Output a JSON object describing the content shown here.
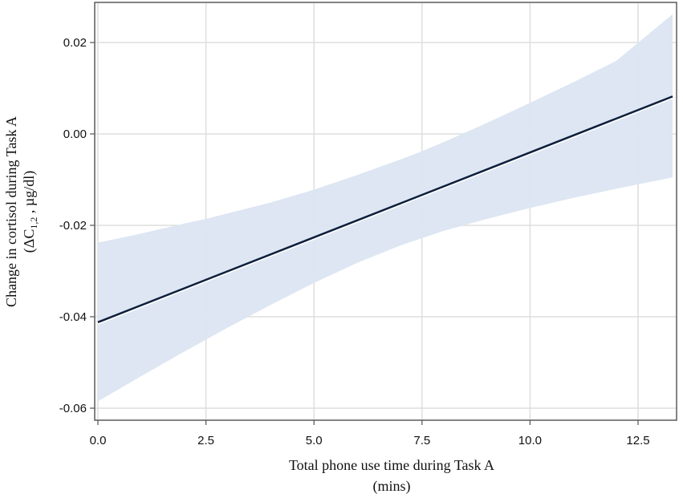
{
  "chart_data": {
    "type": "line",
    "title": "",
    "xlabel": "Total phone use time during Task A",
    "xlabel_line2": "(mins)",
    "ylabel": "Change in cortisol during Task A",
    "ylabel_line2_prefix": "(ΔC",
    "ylabel_line2_sub": "1,2",
    "ylabel_line2_suffix": " , µg/dl)",
    "xlim": [
      -0.1,
      13.3
    ],
    "ylim": [
      -0.0625,
      0.0285
    ],
    "x_ticks": [
      0.0,
      2.5,
      5.0,
      7.5,
      10.0,
      12.5
    ],
    "x_tick_labels": [
      "0.0",
      "2.5",
      "5.0",
      "7.5",
      "10.0",
      "12.5"
    ],
    "y_ticks": [
      0.02,
      0.0,
      -0.02,
      -0.04,
      -0.06
    ],
    "y_tick_labels": [
      "0.02",
      "0.00",
      "-0.02",
      "-0.04",
      "-0.06"
    ],
    "grid": true,
    "legend": null,
    "series": [
      {
        "name": "Fitted regression line",
        "color": "#0d1f3c",
        "x": [
          0.0,
          13.3
        ],
        "y": [
          -0.0412,
          0.0082
        ]
      },
      {
        "name": "95% confidence band (upper)",
        "color": "#dbe5f1",
        "x": [
          0.0,
          1.0,
          2.0,
          2.5,
          3.0,
          4.0,
          5.0,
          6.0,
          7.0,
          7.5,
          8.0,
          9.0,
          10.0,
          11.0,
          12.0,
          13.3
        ],
        "y": [
          -0.0238,
          -0.0218,
          -0.0196,
          -0.0186,
          -0.0174,
          -0.015,
          -0.0122,
          -0.009,
          -0.0056,
          -0.0038,
          -0.0018,
          0.0024,
          0.0068,
          0.0113,
          0.016,
          0.0262
        ]
      },
      {
        "name": "95% confidence band (lower)",
        "color": "#dbe5f1",
        "x": [
          0.0,
          1.0,
          2.0,
          2.5,
          3.0,
          4.0,
          5.0,
          6.0,
          7.0,
          7.5,
          8.0,
          9.0,
          10.0,
          11.0,
          12.0,
          13.3
        ],
        "y": [
          -0.0585,
          -0.053,
          -0.0476,
          -0.045,
          -0.0424,
          -0.0374,
          -0.0326,
          -0.0282,
          -0.0244,
          -0.0228,
          -0.0212,
          -0.0186,
          -0.0162,
          -0.014,
          -0.012,
          -0.0095
        ]
      }
    ]
  },
  "style": {
    "band_color": "#dbe5f1",
    "line_color": "#0d1f3c",
    "grid_color": "#dedede",
    "axis_color": "#555555"
  }
}
